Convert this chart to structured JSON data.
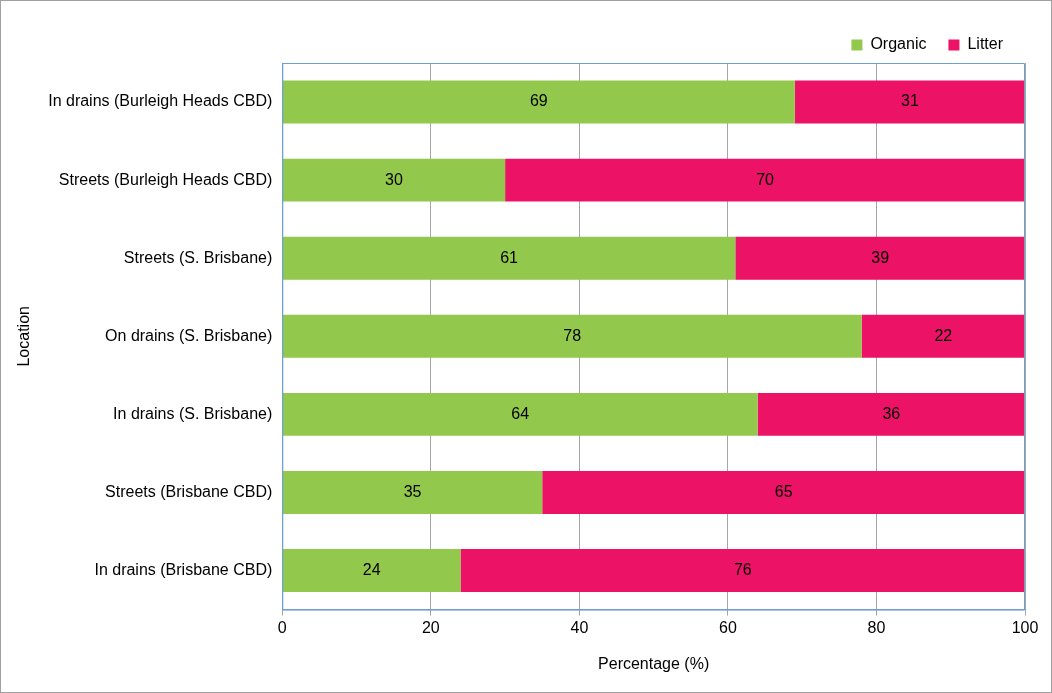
{
  "chart_data": {
    "type": "bar",
    "orientation": "horizontal",
    "stacked": true,
    "xlabel": "Percentage (%)",
    "ylabel": "Location",
    "categories": [
      "In drains (Burleigh Heads CBD)",
      "Streets (Burleigh Heads CBD)",
      "Streets (S. Brisbane)",
      "On drains (S. Brisbane)",
      "In drains (S. Brisbane)",
      "Streets (Brisbane CBD)",
      "In drains (Brisbane CBD)"
    ],
    "series": [
      {
        "name": "Organic",
        "color": "#92c84b",
        "values": [
          69,
          30,
          61,
          78,
          64,
          35,
          24
        ]
      },
      {
        "name": "Litter",
        "color": "#ec1367",
        "values": [
          31,
          70,
          39,
          22,
          36,
          65,
          76
        ]
      }
    ],
    "xlim": [
      0,
      100
    ],
    "xticks": [
      0,
      20,
      40,
      60,
      80,
      100
    ],
    "grid": "x",
    "legend": "top right",
    "data_labels": true
  }
}
